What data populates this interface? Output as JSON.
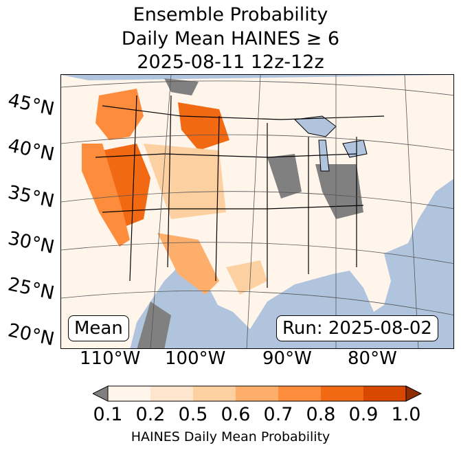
{
  "title": {
    "line1": "Ensemble Probability",
    "line2": "Daily Mean HAINES ≥ 6",
    "line3": "2025-08-11 12z-12z"
  },
  "map": {
    "region": "Contiguous United States",
    "lat_labels": [
      "45°N",
      "40°N",
      "35°N",
      "30°N",
      "25°N",
      "20°N"
    ],
    "lon_labels": [
      "110°W",
      "100°W",
      "90°W",
      "80°W"
    ],
    "ocean_color": "#b0c4de",
    "no_data_color": "#808080",
    "box_left": "Mean",
    "box_right": "Run: 2025-08-02"
  },
  "colorbar": {
    "ticks": [
      "0.1",
      "0.2",
      "0.5",
      "0.6",
      "0.7",
      "0.8",
      "0.9",
      "1.0"
    ],
    "colors": [
      "#fff5eb",
      "#fee6ce",
      "#fdd0a2",
      "#fdae6b",
      "#fd8d3c",
      "#f16913",
      "#d94801"
    ],
    "under_color": "#808080",
    "over_color": "#8c2d04",
    "label": "HAINES Daily Mean Probability"
  }
}
